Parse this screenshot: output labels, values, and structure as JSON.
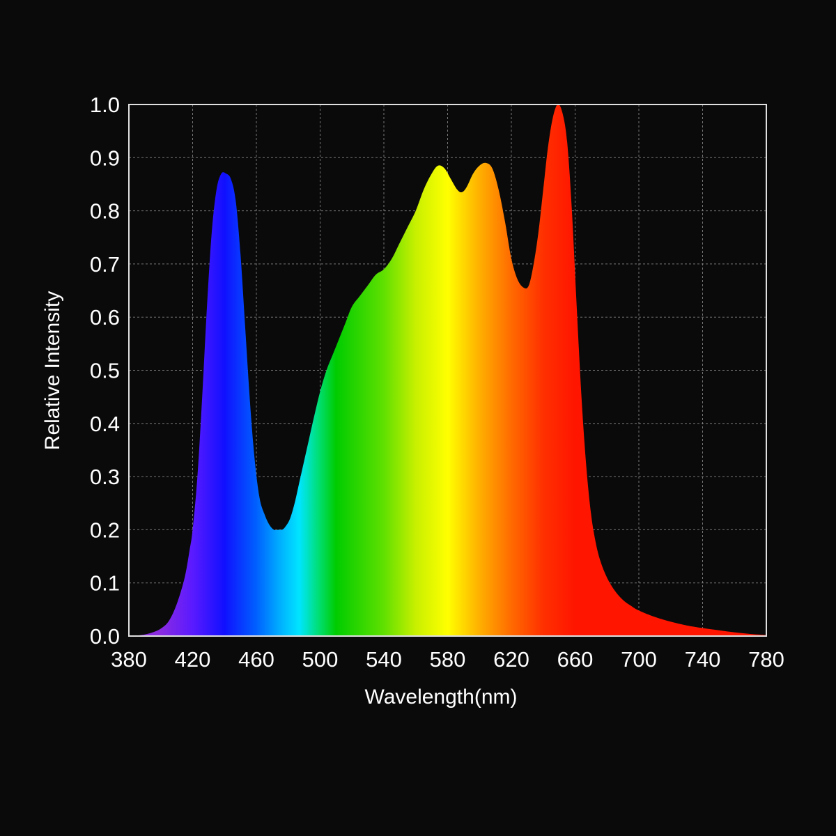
{
  "chart_data": {
    "type": "area",
    "title": "",
    "xlabel": "Wavelength(nm)",
    "ylabel": "Relative Intensity",
    "xlim": [
      380,
      780
    ],
    "ylim": [
      0,
      1.0
    ],
    "x_ticks": [
      "380",
      "420",
      "460",
      "500",
      "540",
      "580",
      "620",
      "660",
      "700",
      "740",
      "780"
    ],
    "y_ticks": [
      "0.0",
      "0.1",
      "0.2",
      "0.3",
      "0.4",
      "0.5",
      "0.6",
      "0.7",
      "0.8",
      "0.9",
      "1.0"
    ],
    "grid": true,
    "colors": {
      "background": "#0a0a0a",
      "frame": "#e0e0e0",
      "grid": "#8a8a8a",
      "text": "#ffffff"
    },
    "spectrum_colors": [
      {
        "nm": 400,
        "color": "#8a2be2"
      },
      {
        "nm": 420,
        "color": "#5a1aff"
      },
      {
        "nm": 440,
        "color": "#1010ff"
      },
      {
        "nm": 460,
        "color": "#0060ff"
      },
      {
        "nm": 475,
        "color": "#00b0ff"
      },
      {
        "nm": 487,
        "color": "#00e5ff"
      },
      {
        "nm": 498,
        "color": "#00e080"
      },
      {
        "nm": 510,
        "color": "#00cc00"
      },
      {
        "nm": 540,
        "color": "#60e000"
      },
      {
        "nm": 560,
        "color": "#c8f000"
      },
      {
        "nm": 580,
        "color": "#ffff00"
      },
      {
        "nm": 600,
        "color": "#ffb000"
      },
      {
        "nm": 620,
        "color": "#ff6a00"
      },
      {
        "nm": 640,
        "color": "#ff3000"
      },
      {
        "nm": 660,
        "color": "#ff1500"
      },
      {
        "nm": 780,
        "color": "#ff1500"
      }
    ],
    "series": [
      {
        "x": [
          380,
          385,
          390,
          395,
          400,
          405,
          410,
          415,
          418,
          420,
          423,
          426,
          429,
          432,
          435,
          438,
          441,
          444,
          447,
          450,
          453,
          456,
          459,
          462,
          465,
          468,
          471,
          474,
          476,
          478,
          481,
          484,
          487,
          490,
          493,
          496,
          500,
          504,
          508,
          512,
          516,
          520,
          525,
          530,
          535,
          540,
          545,
          550,
          555,
          560,
          565,
          570,
          574,
          578,
          582,
          586,
          589,
          592,
          596,
          600,
          604,
          608,
          612,
          616,
          620,
          624,
          628,
          631,
          634,
          637,
          640,
          643,
          646,
          649,
          652,
          655,
          658,
          661,
          664,
          667,
          670,
          673,
          676,
          680,
          685,
          690,
          695,
          700,
          710,
          720,
          730,
          740,
          750,
          760,
          770,
          780
        ],
        "y": [
          0.0,
          0.001,
          0.003,
          0.007,
          0.014,
          0.028,
          0.06,
          0.11,
          0.16,
          0.2,
          0.3,
          0.45,
          0.62,
          0.76,
          0.84,
          0.87,
          0.87,
          0.86,
          0.82,
          0.72,
          0.58,
          0.44,
          0.33,
          0.26,
          0.23,
          0.21,
          0.2,
          0.2,
          0.2,
          0.205,
          0.22,
          0.25,
          0.29,
          0.33,
          0.37,
          0.41,
          0.46,
          0.5,
          0.53,
          0.56,
          0.59,
          0.62,
          0.64,
          0.66,
          0.68,
          0.69,
          0.71,
          0.74,
          0.77,
          0.8,
          0.84,
          0.87,
          0.885,
          0.88,
          0.86,
          0.84,
          0.835,
          0.845,
          0.87,
          0.885,
          0.89,
          0.88,
          0.84,
          0.78,
          0.71,
          0.67,
          0.655,
          0.66,
          0.7,
          0.76,
          0.84,
          0.92,
          0.975,
          1.0,
          0.985,
          0.93,
          0.8,
          0.62,
          0.45,
          0.32,
          0.23,
          0.175,
          0.14,
          0.11,
          0.085,
          0.068,
          0.057,
          0.048,
          0.036,
          0.027,
          0.02,
          0.015,
          0.011,
          0.007,
          0.004,
          0.002
        ]
      }
    ]
  }
}
